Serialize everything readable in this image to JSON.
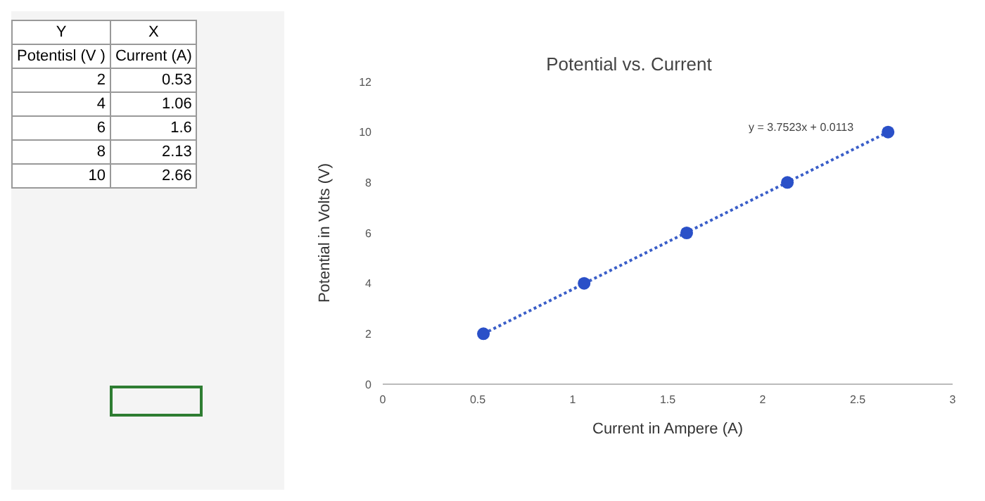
{
  "chart_data": {
    "type": "scatter",
    "title": "Potential vs. Current",
    "xlabel": "Current in Ampere (A)",
    "ylabel": "Potential in Volts (V)",
    "x": [
      0.53,
      1.06,
      1.6,
      2.13,
      2.66
    ],
    "series": [
      {
        "color": "#2a50c8",
        "values": [
          2,
          4,
          6,
          8,
          10
        ],
        "marker": "circle"
      },
      {
        "type": "line",
        "color": "#3a5ec8",
        "x": [
          0.53,
          2.66
        ],
        "values": [
          2.0,
          10.0
        ],
        "line_style": "dotted",
        "marker": "none"
      }
    ],
    "xlim": [
      0,
      3
    ],
    "xticks": [
      0,
      0.5,
      1,
      1.5,
      2,
      2.5,
      3
    ],
    "ylim": [
      0,
      12
    ],
    "yticks": [
      0,
      2,
      4,
      6,
      8,
      10,
      12
    ],
    "grid": false,
    "legend": false,
    "annotations": [
      "y = 3.7523x + 0.0113",
      "Y",
      "X",
      "Potentisl (V )",
      "Current (A)",
      "2",
      "0.53",
      "4",
      "1.06",
      "6",
      "1.6",
      "8",
      "2.13",
      "10",
      "2.66"
    ]
  }
}
